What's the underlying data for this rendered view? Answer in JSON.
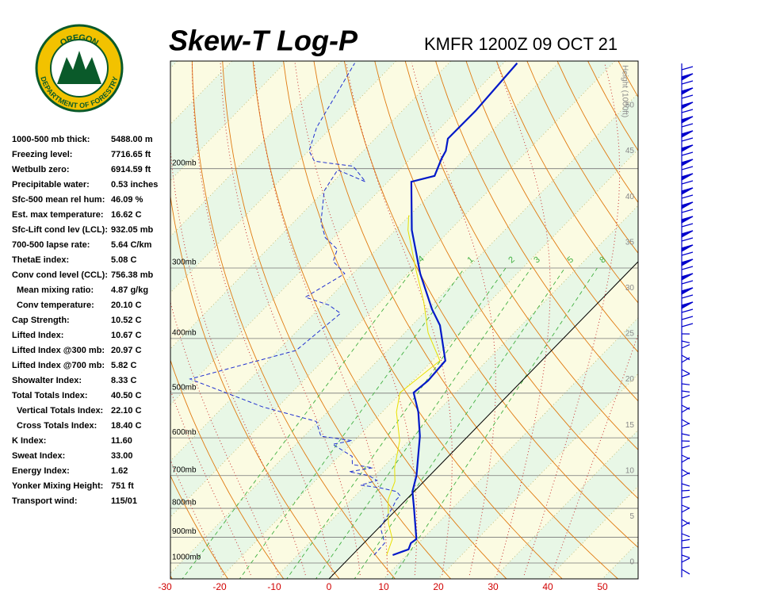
{
  "header": {
    "title": "Skew-T Log-P",
    "station": "KMFR 1200Z 09 OCT 21"
  },
  "logo": {
    "top": "OREGON",
    "bottom": "DEPARTMENT OF FORESTRY"
  },
  "indices": [
    [
      "1000-500 mb thick:",
      "5488.00 m"
    ],
    [
      "Freezing level:",
      "7716.65 ft"
    ],
    [
      "Wetbulb zero:",
      "6914.59 ft"
    ],
    [
      "Precipitable water:",
      "0.53 inches"
    ],
    [
      "Sfc-500 mean rel hum:",
      "46.09 %"
    ],
    [
      "Est. max temperature:",
      "16.62 C"
    ],
    [
      "Sfc-Lift cond lev (LCL):",
      "932.05 mb"
    ],
    [
      "700-500 lapse rate:",
      "5.64 C/km"
    ],
    [
      "ThetaE index:",
      "5.08 C"
    ],
    [
      "Conv cond level (CCL):",
      "756.38 mb"
    ],
    [
      "Mean mixing ratio:",
      "4.87 g/kg"
    ],
    [
      "Conv temperature:",
      "20.10 C"
    ],
    [
      "Cap Strength:",
      "10.52 C"
    ],
    [
      "Lifted Index:",
      "10.67 C"
    ],
    [
      "Lifted Index @300 mb:",
      "20.97 C"
    ],
    [
      "Lifted Index @700 mb:",
      "5.82 C"
    ],
    [
      "Showalter Index:",
      "8.33 C"
    ],
    [
      "Total Totals Index:",
      "40.50 C"
    ],
    [
      "Vertical Totals Index:",
      "22.10 C"
    ],
    [
      "Cross Totals Index:",
      "18.40 C"
    ],
    [
      "K Index:",
      "11.60"
    ],
    [
      "Sweat Index:",
      "33.00"
    ],
    [
      "Energy Index:",
      "1.62"
    ],
    [
      "Yonker Mixing Height:",
      "751 ft"
    ],
    [
      "Transport wind:",
      "115/01"
    ]
  ],
  "diagram": {
    "pressure_levels": [
      {
        "value": 1000,
        "label": "1000mb"
      },
      {
        "value": 900,
        "label": "900mb"
      },
      {
        "value": 800,
        "label": "800mb"
      },
      {
        "value": 700,
        "label": "700mb"
      },
      {
        "value": 600,
        "label": "600mb"
      },
      {
        "value": 500,
        "label": "500mb"
      },
      {
        "value": 400,
        "label": "400mb"
      },
      {
        "value": 300,
        "label": "300mb"
      },
      {
        "value": 200,
        "label": "200mb"
      }
    ],
    "temperature_ticks": [
      -30,
      -20,
      -10,
      0,
      10,
      20,
      30,
      40,
      50
    ],
    "height_axis_label": "Height (1000ft)",
    "height_ticks": [
      0,
      5,
      10,
      15,
      20,
      25,
      30,
      35,
      40,
      45,
      50
    ],
    "mixing_ratio_lines": [
      {
        "value": 0.4,
        "label": ".4"
      },
      1,
      2,
      3,
      5,
      8
    ],
    "temperature": {
      "p": [
        968,
        946,
        922,
        907,
        797,
        747,
        700,
        596,
        540,
        499,
        475,
        438,
        379,
        355,
        307,
        257,
        211,
        206,
        192,
        186,
        177,
        158,
        130
      ],
      "t": [
        7.4,
        9.3,
        8.6,
        8.9,
        2.8,
        -0.3,
        -2.4,
        -8.8,
        -13.4,
        -17.7,
        -17.2,
        -17.6,
        -24.9,
        -29.2,
        -37.7,
        -47.0,
        -55.7,
        -52.5,
        -54.3,
        -54.9,
        -56.7,
        -56.6,
        -57.5
      ]
    },
    "dewpoint": {
      "p": [
        968,
        922,
        864,
        797,
        772,
        760,
        747,
        735,
        728,
        714,
        700,
        689,
        678,
        669,
        647,
        616,
        607,
        596,
        561,
        529,
        472,
        420,
        361,
        349,
        338,
        307,
        292,
        278,
        265,
        249,
        219,
        201,
        211,
        198,
        194,
        186,
        169,
        130
      ],
      "t": [
        4.0,
        3.8,
        0.2,
        -1.1,
        -1.8,
        -1.8,
        -3.2,
        -7.1,
        -10.9,
        -8.8,
        -11.1,
        -15.4,
        -11.8,
        -16.1,
        -17.6,
        -23.3,
        -20.4,
        -26.9,
        -30.4,
        -42.7,
        -61.0,
        -46.7,
        -45.2,
        -48.8,
        -54.5,
        -51.5,
        -55.8,
        -57.2,
        -61.5,
        -65.0,
        -70.0,
        -71.3,
        -64.1,
        -69.1,
        -77.1,
        -79.9,
        -82.7,
        -87.2
      ]
    },
    "wetbulb": {
      "p": [
        968,
        907,
        851,
        772,
        717,
        678,
        607,
        540,
        499,
        468,
        438,
        391,
        344,
        302,
        257,
        242
      ],
      "t": [
        6.3,
        4.5,
        1.0,
        -3.3,
        -5.3,
        -7.8,
        -11.7,
        -17.4,
        -20.2,
        -19.4,
        -18.6,
        -25.7,
        -32.1,
        -39.2,
        -47.7,
        -50.2
      ]
    }
  }
}
